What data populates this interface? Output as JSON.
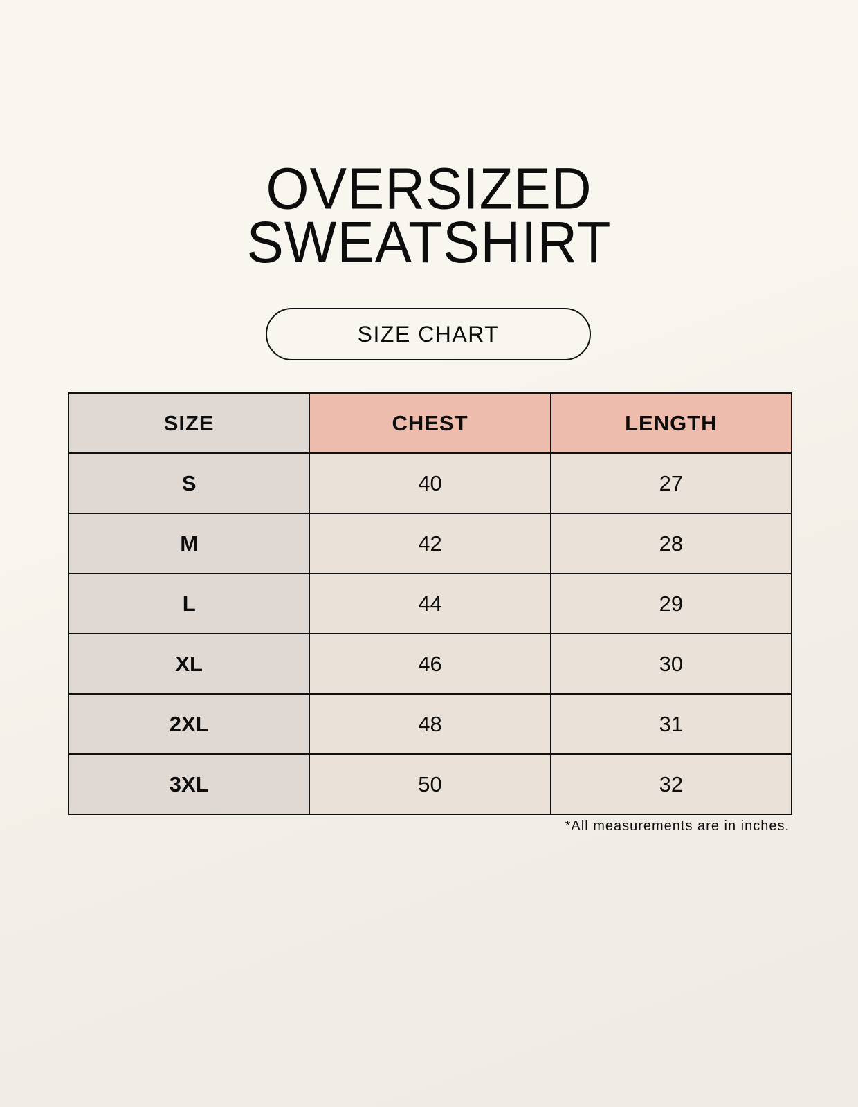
{
  "title": {
    "line1": "OVERSIZED",
    "line2": "SWEATSHIRT"
  },
  "badge": "SIZE CHART",
  "table": {
    "headers": [
      "SIZE",
      "CHEST",
      "LENGTH"
    ],
    "rows": [
      [
        "S",
        "40",
        "27"
      ],
      [
        "M",
        "42",
        "28"
      ],
      [
        "L",
        "44",
        "29"
      ],
      [
        "XL",
        "46",
        "30"
      ],
      [
        "2XL",
        "48",
        "31"
      ],
      [
        "3XL",
        "50",
        "32"
      ]
    ]
  },
  "colors": {
    "header_accent": "#eebcad",
    "size_column": "#e0d8d3",
    "cell": "#eae2d8"
  },
  "footnote": "*All measurements are in inches."
}
